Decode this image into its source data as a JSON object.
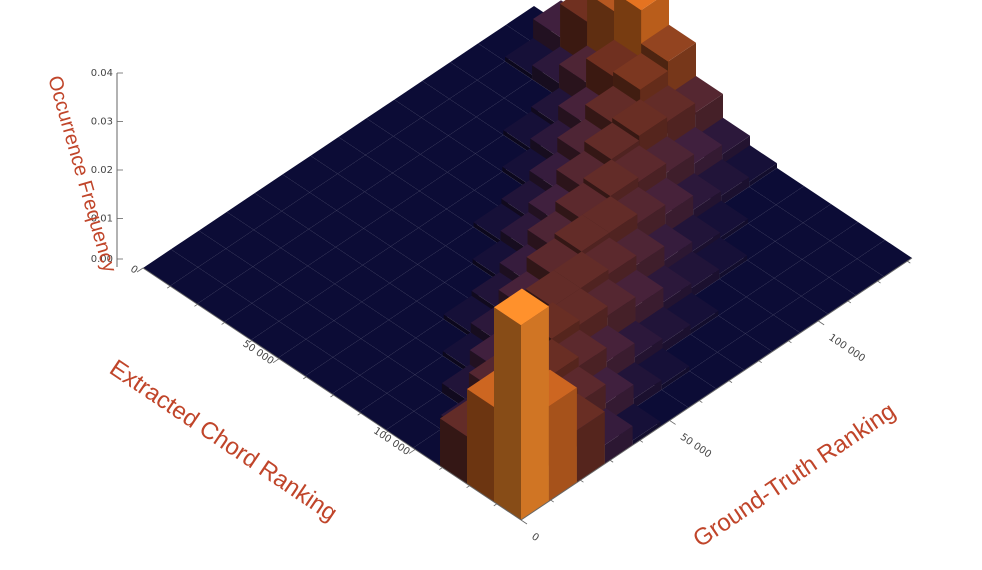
{
  "chart_data": {
    "type": "bar3d",
    "title": "",
    "xlabel": "Ground-Truth Ranking",
    "ylabel": "Extracted Chord Ranking",
    "zlabel": "Occurrence Frequency",
    "x_ticks": [
      "0",
      "50 000",
      "100 000"
    ],
    "y_ticks": [
      "0",
      "50 000",
      "100 000"
    ],
    "z_ticks": [
      "0.00",
      "0.01",
      "0.02",
      "0.03",
      "0.04"
    ],
    "x_range": [
      0,
      140000
    ],
    "y_range": [
      0,
      140000
    ],
    "z_range": [
      0,
      0.04
    ],
    "grid_size": 14,
    "bin_width": 10000,
    "grid": false,
    "colors": {
      "low": "#0b0b33",
      "mid": "#6b2e1e",
      "high": "#f07a20",
      "peak": "#f58a2a"
    },
    "values": [
      [
        0.041,
        0.02,
        0.01,
        0.0,
        0.0,
        0.0,
        0.0,
        0.0,
        0.0,
        0.0,
        0.0,
        0.0,
        0.0,
        0.0
      ],
      [
        0.02,
        0.015,
        0.011,
        0.003,
        0.0,
        0.0,
        0.0,
        0.0,
        0.0,
        0.0,
        0.0,
        0.0,
        0.0,
        0.0
      ],
      [
        0.011,
        0.012,
        0.012,
        0.008,
        0.002,
        0.0,
        0.0,
        0.0,
        0.0,
        0.0,
        0.0,
        0.0,
        0.0,
        0.0
      ],
      [
        0.004,
        0.009,
        0.011,
        0.01,
        0.005,
        0.001,
        0.0,
        0.0,
        0.0,
        0.0,
        0.0,
        0.0,
        0.0,
        0.0
      ],
      [
        0.001,
        0.005,
        0.009,
        0.011,
        0.008,
        0.003,
        0.001,
        0.0,
        0.0,
        0.0,
        0.0,
        0.0,
        0.0,
        0.0
      ],
      [
        0.0,
        0.002,
        0.006,
        0.01,
        0.01,
        0.006,
        0.002,
        0.0,
        0.0,
        0.0,
        0.0,
        0.0,
        0.0,
        0.0
      ],
      [
        0.0,
        0.001,
        0.003,
        0.008,
        0.01,
        0.009,
        0.004,
        0.001,
        0.0,
        0.0,
        0.0,
        0.0,
        0.0,
        0.0
      ],
      [
        0.0,
        0.0,
        0.002,
        0.006,
        0.009,
        0.01,
        0.007,
        0.003,
        0.001,
        0.0,
        0.0,
        0.0,
        0.0,
        0.0
      ],
      [
        0.0,
        0.0,
        0.001,
        0.003,
        0.007,
        0.01,
        0.009,
        0.005,
        0.002,
        0.0,
        0.0,
        0.0,
        0.0,
        0.0
      ],
      [
        0.0,
        0.0,
        0.0,
        0.002,
        0.004,
        0.008,
        0.01,
        0.008,
        0.004,
        0.001,
        0.0,
        0.0,
        0.0,
        0.0
      ],
      [
        0.0,
        0.0,
        0.0,
        0.001,
        0.002,
        0.006,
        0.009,
        0.01,
        0.007,
        0.003,
        0.001,
        0.0,
        0.0,
        0.0
      ],
      [
        0.0,
        0.0,
        0.0,
        0.0,
        0.001,
        0.003,
        0.007,
        0.011,
        0.01,
        0.006,
        0.002,
        0.0,
        0.0,
        0.0
      ],
      [
        0.0,
        0.0,
        0.0,
        0.0,
        0.0,
        0.002,
        0.005,
        0.01,
        0.013,
        0.012,
        0.007,
        0.003,
        0.001,
        0.0
      ],
      [
        0.0,
        0.0,
        0.0,
        0.0,
        0.0,
        0.001,
        0.003,
        0.008,
        0.015,
        0.022,
        0.018,
        0.012,
        0.005,
        0.0
      ]
    ],
    "values_layout": "values[i][j]: i = Ground-Truth Ranking bin (0..13), j = Extracted Chord Ranking bin (0..13)"
  }
}
